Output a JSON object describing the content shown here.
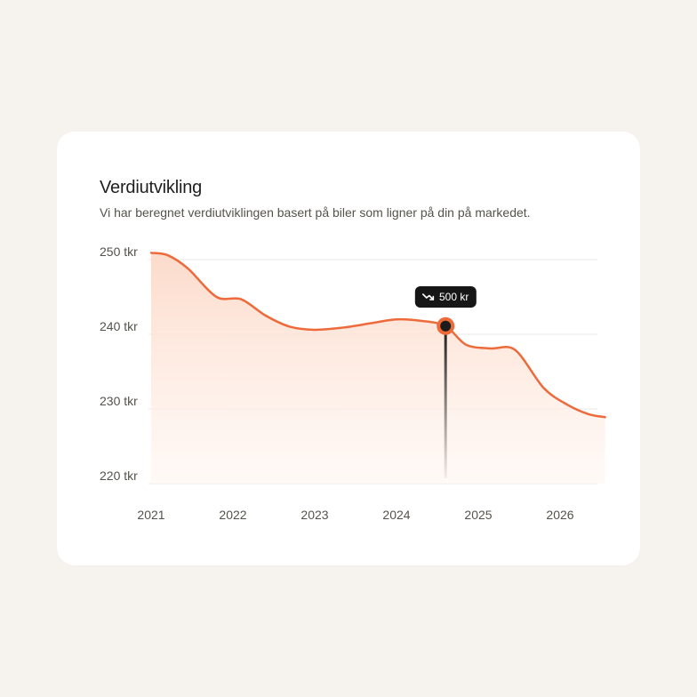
{
  "card": {
    "title": "Verdiutvikling",
    "subtitle": "Vi har beregnet verdiutviklingen basert på biler som ligner på din på markedet."
  },
  "chart_data": {
    "type": "area",
    "title": "Verdiutvikling",
    "subtitle": "Vi har beregnet verdiutviklingen basert på biler som ligner på din på markedet.",
    "xlabel": "",
    "ylabel": "",
    "x_ticks": [
      "2021",
      "2022",
      "2023",
      "2024",
      "2025",
      "2026"
    ],
    "y_ticks": [
      "250 tkr",
      "240 tkr",
      "230 tkr",
      "220 tkr"
    ],
    "y_tick_values": [
      250,
      240,
      230,
      220
    ],
    "ylim": [
      220,
      250
    ],
    "xlim": [
      2021,
      2026.55
    ],
    "grid": true,
    "unit": "tkr",
    "series": [
      {
        "color": "#ee6a3a",
        "x": [
          2021.0,
          2021.2,
          2021.45,
          2021.8,
          2022.1,
          2022.4,
          2022.7,
          2023.0,
          2023.35,
          2023.7,
          2024.0,
          2024.3,
          2024.6,
          2024.85,
          2025.15,
          2025.45,
          2025.8,
          2026.1,
          2026.35,
          2026.55
        ],
        "y": [
          250.9,
          250.6,
          248.8,
          245.0,
          244.7,
          242.5,
          241.0,
          240.6,
          240.9,
          241.5,
          242.0,
          241.8,
          241.1,
          238.6,
          238.1,
          237.9,
          232.8,
          230.5,
          229.3,
          228.9
        ]
      }
    ],
    "highlight": {
      "x": 2024.6,
      "y": 241.1,
      "label": "500 kr",
      "icon": "trend-down-icon"
    },
    "colors": {
      "line": "#ee6a3a",
      "fill_top": "#fcd9c8",
      "fill_bottom": "#fff6f1",
      "grid": "#ebe8e4",
      "tooltip_bg": "#161616",
      "marker_center": "#1c1c1c"
    }
  }
}
